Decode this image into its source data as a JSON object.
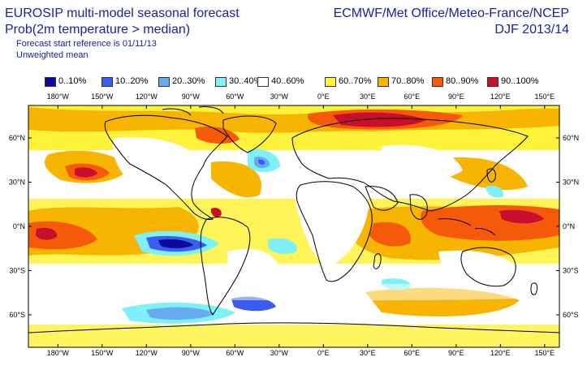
{
  "header": {
    "title_line1": "EUROSIP multi-model seasonal forecast",
    "title_line2": "Prob(2m temperature > median)",
    "forecast_start": "Forecast start reference is 01/11/13",
    "weighting": "Unweighted mean",
    "organizations": "ECMWF/Met Office/Meteo-France/NCEP",
    "season": "DJF 2013/14"
  },
  "legend": [
    {
      "label": "0..10%",
      "color": "#0a0a9c"
    },
    {
      "label": "10..20%",
      "color": "#3a5cf0"
    },
    {
      "label": "20..30%",
      "color": "#66aaf0"
    },
    {
      "label": "30..40%",
      "color": "#7ff0f8"
    },
    {
      "label": "40..60%",
      "color": "#ffffff"
    },
    {
      "label": "60..70%",
      "color": "#fff23a"
    },
    {
      "label": "70..80%",
      "color": "#f7b400"
    },
    {
      "label": "80..90%",
      "color": "#f55a0a"
    },
    {
      "label": "90..100%",
      "color": "#c8102e"
    }
  ],
  "map": {
    "lon_ticks": [
      "180°W",
      "150°W",
      "120°W",
      "90°W",
      "60°W",
      "30°W",
      "0°E",
      "30°E",
      "60°E",
      "90°E",
      "120°E",
      "150°E"
    ],
    "lat_ticks": [
      "60°N",
      "30°N",
      "0°N",
      "30°S",
      "60°S"
    ]
  }
}
